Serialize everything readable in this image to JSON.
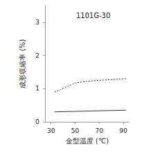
{
  "chart_data": {
    "type": "line",
    "title": "1101G-30",
    "x_label": "金型温度 (℃)",
    "y_label": "成形収縮率 (%)",
    "xlim": [
      25,
      95
    ],
    "xticks": [
      30,
      50,
      70,
      90
    ],
    "ylim": [
      0,
      3.5
    ],
    "yticks": [
      0,
      1,
      2,
      3
    ],
    "grid": false,
    "series": [
      {
        "color": "#333333",
        "line_style": "dashed",
        "x": [
          33,
          40,
          50,
          60,
          70,
          80,
          92
        ],
        "values": [
          0.9,
          1.0,
          1.17,
          1.22,
          1.25,
          1.27,
          1.3
        ]
      },
      {
        "color": "#333333",
        "line_style": "solid",
        "x": [
          33,
          92
        ],
        "values": [
          0.3,
          0.35
        ]
      }
    ]
  }
}
